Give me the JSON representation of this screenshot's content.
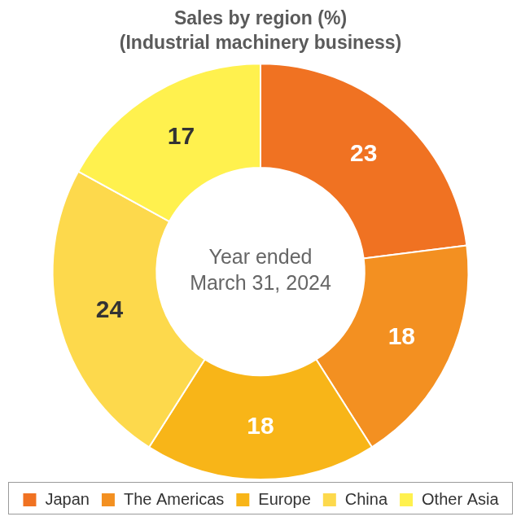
{
  "chart_data": {
    "type": "doughnut",
    "title": "Sales by region (%)",
    "subtitle": "(Industrial machinery business)",
    "annotations": [
      "Year ended",
      "March 31, 2024"
    ],
    "categories": [
      "Japan",
      "The Americas",
      "Europe",
      "China",
      "Other Asia"
    ],
    "values": [
      23,
      18,
      18,
      24,
      17
    ],
    "colors": [
      "#f07222",
      "#f39021",
      "#f8b518",
      "#fdd94c",
      "#fff14e"
    ],
    "data_labels": true,
    "legend": "bottom"
  }
}
